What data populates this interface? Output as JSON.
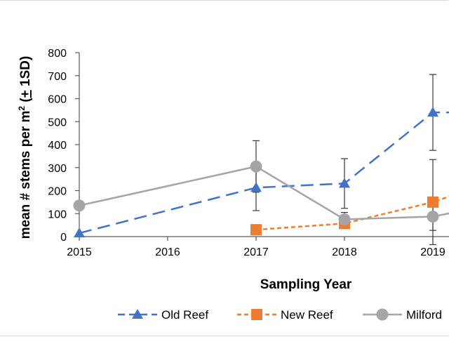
{
  "chart_data": {
    "type": "line",
    "xlabel": "Sampling Year",
    "ylabel": {
      "main": "mean # stems per m",
      "sup": "2",
      "paren_open": " (",
      "pm": "+",
      "rest": " 1SD)"
    },
    "x_ticks": [
      "2015",
      "2016",
      "2017",
      "2018",
      "2019"
    ],
    "y_ticks": [
      "0",
      "100",
      "200",
      "300",
      "400",
      "500",
      "600",
      "700",
      "800"
    ],
    "ylim": [
      0,
      800
    ],
    "xlim": [
      2015,
      2019
    ],
    "grid": false,
    "legend_position": "bottom",
    "series": [
      {
        "name": "Old Reef",
        "color": "#4472c4",
        "marker": "triangle",
        "dash": "dashed-long",
        "x": [
          2015,
          2017,
          2018,
          2019,
          2019.3
        ],
        "y": [
          15,
          213,
          231,
          540,
          540
        ],
        "err": [
          0,
          100,
          108,
          165,
          0
        ]
      },
      {
        "name": "New Reef",
        "color": "#ed7d31",
        "marker": "square",
        "dash": "dashed-short",
        "x": [
          2017,
          2018,
          2019,
          2019.3
        ],
        "y": [
          30,
          57,
          150,
          190
        ],
        "err": [
          0,
          0,
          185,
          0
        ]
      },
      {
        "name": "Milford",
        "color": "#a5a5a5",
        "marker": "circle",
        "dash": "solid",
        "x": [
          2015,
          2017,
          2018,
          2019,
          2019.3
        ],
        "y": [
          135,
          305,
          75,
          87,
          110
        ],
        "err": [
          0,
          112,
          30,
          60,
          0
        ]
      }
    ]
  }
}
